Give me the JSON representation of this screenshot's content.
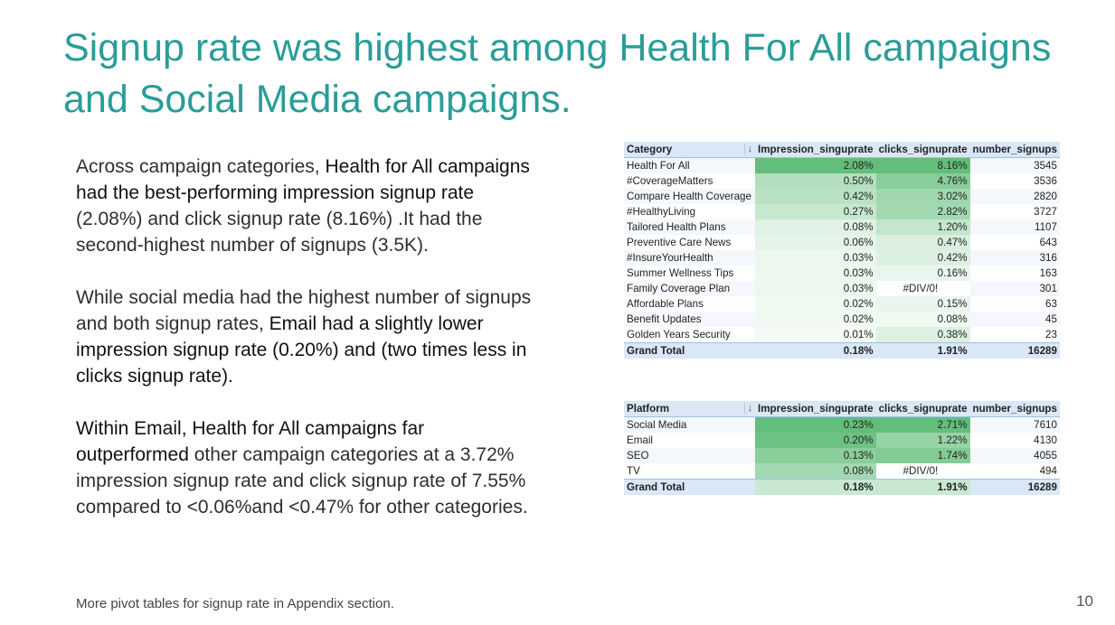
{
  "title": "Signup rate was highest among Health For All campaigns and Social Media  campaigns.",
  "body": {
    "p1": {
      "t1": "Across campaign categories, ",
      "e1": "Health for All campaigns had the best-performing impression signup rate",
      "t2": " (2.08%) and click signup rate (8.16%) .It had the second-highest number of signups (3.5K)."
    },
    "p2": {
      "t1": "While social media had the highest number of signups and both signup rates, ",
      "e1": "Email had a slightly lower impression signup rate (0.20%) and (two times less in   clicks signup rate)."
    },
    "p3": {
      "e1": "Within Email, Health for All campaigns far outperformed",
      "t1": " other campaign categories at a 3.72% impression signup rate and click signup rate of 7.55% compared to <0.06%and <0.47% for other categories."
    }
  },
  "footnote": "More pivot tables for signup rate in Appendix section.",
  "page_number": "10",
  "colors": {
    "title": "#2a9d98",
    "header_bg": "#d9e7f6",
    "scale_high": "#63be7b",
    "scale_low": "#ffffff"
  },
  "category_table": {
    "headers": [
      "Category",
      "Impression_singuprate",
      "clicks_signuprate",
      "number_signups"
    ],
    "filter_icon": "↓",
    "rows": [
      [
        "Health For All",
        "2.08%",
        "8.16%",
        "3545"
      ],
      [
        "#CoverageMatters",
        "0.50%",
        "4.76%",
        "3536"
      ],
      [
        "Compare Health Coverage",
        "0.42%",
        "3.02%",
        "2820"
      ],
      [
        "#HealthyLiving",
        "0.27%",
        "2.82%",
        "3727"
      ],
      [
        "Tailored Health Plans",
        "0.08%",
        "1.20%",
        "1107"
      ],
      [
        "Preventive Care News",
        "0.06%",
        "0.47%",
        "643"
      ],
      [
        "#InsureYourHealth",
        "0.03%",
        "0.42%",
        "316"
      ],
      [
        "Summer Wellness Tips",
        "0.03%",
        "0.16%",
        "163"
      ],
      [
        "Family Coverage Plan",
        "0.03%",
        "#DIV/0!",
        "301"
      ],
      [
        "Affordable Plans",
        "0.02%",
        "0.15%",
        "63"
      ],
      [
        "Benefit Updates",
        "0.02%",
        "0.08%",
        "45"
      ],
      [
        "Golden Years Security",
        "0.01%",
        "0.38%",
        "23"
      ]
    ],
    "total": [
      "Grand Total",
      "0.18%",
      "1.91%",
      "16289"
    ]
  },
  "platform_table": {
    "headers": [
      "Platform",
      "Impression_singuprate",
      "clicks_signuprate",
      "number_signups"
    ],
    "filter_icon": "↓",
    "rows": [
      [
        "Social Media",
        "0.23%",
        "2.71%",
        "7610"
      ],
      [
        "Email",
        "0.20%",
        "1.22%",
        "4130"
      ],
      [
        "SEO",
        "0.13%",
        "1.74%",
        "4055"
      ],
      [
        "TV",
        "0.08%",
        "#DIV/0!",
        "494"
      ]
    ],
    "total": [
      "Grand Total",
      "0.18%",
      "1.91%",
      "16289"
    ]
  }
}
